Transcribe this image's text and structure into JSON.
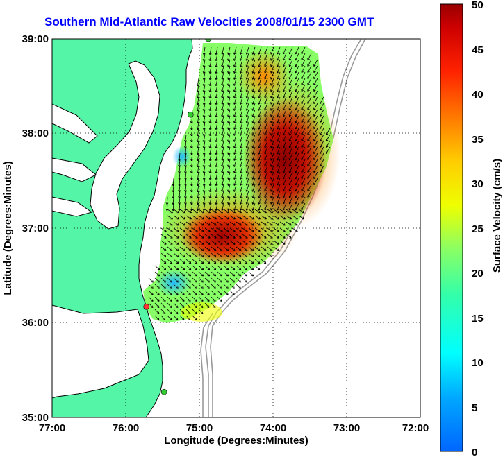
{
  "title": "Southern Mid-Atlantic Raw Velocities 2008/01/15 2300 GMT",
  "map": {
    "xlabel": "Longitude (Degrees:Minutes)",
    "ylabel": "Latitude (Degrees:Minutes)",
    "lon_range": [
      -77,
      -72
    ],
    "lat_range": [
      35,
      39
    ],
    "x_ticks": [
      "77:00",
      "76:00",
      "75:00",
      "74:00",
      "73:00",
      "72:00"
    ],
    "y_ticks": [
      "35:00",
      "36:00",
      "37:00",
      "38:00",
      "39:00"
    ],
    "land_color": "#55f5a7",
    "coast_color": "#000000",
    "bathymetry_color": "#999999"
  },
  "colorbar": {
    "label": "Surface Velocity (cm/s)",
    "range": [
      0,
      50
    ],
    "ticks": [
      "0",
      "5",
      "10",
      "15",
      "20",
      "25",
      "30",
      "35",
      "40",
      "45",
      "50"
    ]
  },
  "sites": [
    {
      "lon": -74.88,
      "lat": 39.0,
      "color": "#33cc33"
    },
    {
      "lon": -75.12,
      "lat": 38.2,
      "color": "#33cc33"
    },
    {
      "lon": -75.72,
      "lat": 36.17,
      "color": "#ff3333"
    },
    {
      "lon": -75.48,
      "lat": 35.27,
      "color": "#33cc33"
    }
  ]
}
